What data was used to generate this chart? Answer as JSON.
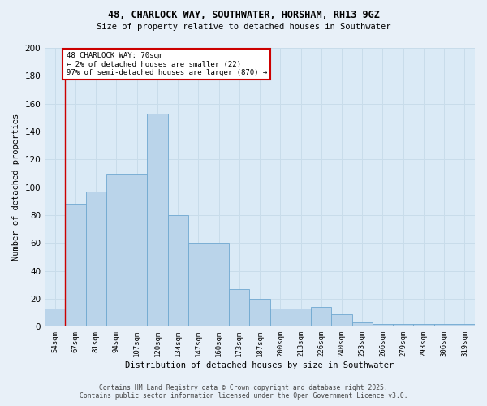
{
  "title1": "48, CHARLOCK WAY, SOUTHWATER, HORSHAM, RH13 9GZ",
  "title2": "Size of property relative to detached houses in Southwater",
  "xlabel": "Distribution of detached houses by size in Southwater",
  "ylabel": "Number of detached properties",
  "footer1": "Contains HM Land Registry data © Crown copyright and database right 2025.",
  "footer2": "Contains public sector information licensed under the Open Government Licence v3.0.",
  "annotation_line1": "48 CHARLOCK WAY: 70sqm",
  "annotation_line2": "← 2% of detached houses are smaller (22)",
  "annotation_line3": "97% of semi-detached houses are larger (870) →",
  "bar_color": "#bad4ea",
  "bar_edge_color": "#6fa8d0",
  "annotation_box_facecolor": "#ffffff",
  "annotation_box_edge": "#cc0000",
  "redline_color": "#cc0000",
  "grid_color": "#c8dcea",
  "bg_color": "#daeaf6",
  "fig_bg_color": "#e8f0f8",
  "categories": [
    "54sqm",
    "67sqm",
    "81sqm",
    "94sqm",
    "107sqm",
    "120sqm",
    "134sqm",
    "147sqm",
    "160sqm",
    "173sqm",
    "187sqm",
    "200sqm",
    "213sqm",
    "226sqm",
    "240sqm",
    "253sqm",
    "266sqm",
    "279sqm",
    "293sqm",
    "306sqm",
    "319sqm"
  ],
  "values": [
    13,
    88,
    97,
    110,
    110,
    153,
    80,
    60,
    60,
    27,
    20,
    13,
    13,
    14,
    9,
    3,
    2,
    2,
    2,
    2,
    2
  ],
  "ylim": [
    0,
    200
  ],
  "yticks": [
    0,
    20,
    40,
    60,
    80,
    100,
    120,
    140,
    160,
    180,
    200
  ],
  "redline_x": 0.5
}
